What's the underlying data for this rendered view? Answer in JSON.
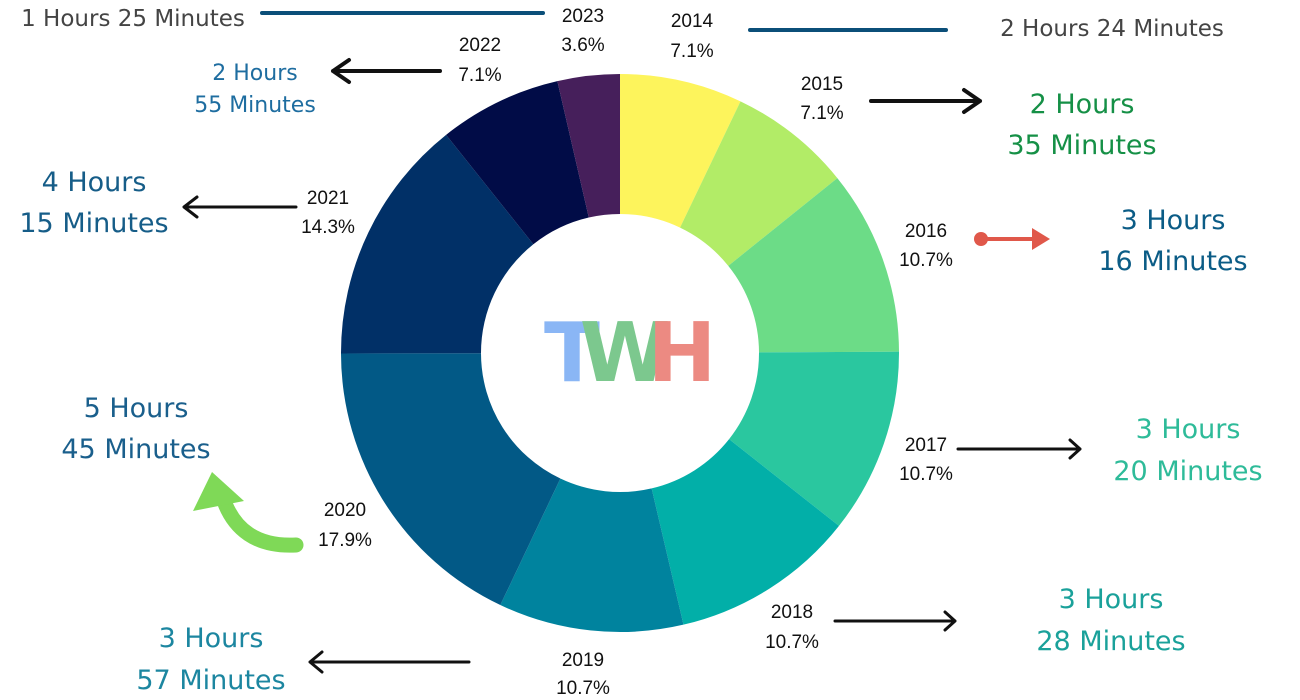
{
  "logo": {
    "letters": [
      {
        "char": "T",
        "color": "#8ab6f5"
      },
      {
        "char": "W",
        "color": "#7cc88e"
      },
      {
        "char": "H",
        "color": "#ec8a82"
      }
    ]
  },
  "chart_data": {
    "type": "pie",
    "donut": true,
    "title": "",
    "legend": "none",
    "slices": [
      {
        "label": "2014",
        "percent": 7.1,
        "pct_label": "7.1%",
        "color": "#fdf45c"
      },
      {
        "label": "2015",
        "percent": 7.1,
        "pct_label": "7.1%",
        "color": "#b2ec67"
      },
      {
        "label": "2016",
        "percent": 10.7,
        "pct_label": "10.7%",
        "color": "#6cdc87"
      },
      {
        "label": "2017",
        "percent": 10.7,
        "pct_label": "10.7%",
        "color": "#2ac79f"
      },
      {
        "label": "2018",
        "percent": 10.7,
        "pct_label": "10.7%",
        "color": "#02afa8"
      },
      {
        "label": "2019",
        "percent": 10.7,
        "pct_label": "10.7%",
        "color": "#00839e"
      },
      {
        "label": "2020",
        "percent": 17.9,
        "pct_label": "17.9%",
        "color": "#025986"
      },
      {
        "label": "2021",
        "percent": 14.3,
        "pct_label": "14.3%",
        "color": "#013067"
      },
      {
        "label": "2022",
        "percent": 7.1,
        "pct_label": "7.1%",
        "color": "#010c47"
      },
      {
        "label": "2023",
        "percent": 3.6,
        "pct_label": "3.6%",
        "color": "#461f5b"
      }
    ],
    "annotations": [
      {
        "year": "2014",
        "lines": [
          "2 Hours 24 Minutes"
        ],
        "color": "#444444"
      },
      {
        "year": "2015",
        "lines": [
          "2 Hours",
          "35 Minutes"
        ],
        "color": "#159046"
      },
      {
        "year": "2016",
        "lines": [
          "3 Hours",
          "16 Minutes"
        ],
        "color": "#0b5c86"
      },
      {
        "year": "2017",
        "lines": [
          "3 Hours",
          "20 Minutes"
        ],
        "color": "#2ebb99"
      },
      {
        "year": "2018",
        "lines": [
          "3 Hours",
          "28 Minutes"
        ],
        "color": "#1aa19a"
      },
      {
        "year": "2019",
        "lines": [
          "3 Hours",
          "57 Minutes"
        ],
        "color": "#1c86a0"
      },
      {
        "year": "2020",
        "lines": [
          "5 Hours",
          "45 Minutes"
        ],
        "color": "#1a5f8c"
      },
      {
        "year": "2021",
        "lines": [
          "4 Hours",
          "15 Minutes"
        ],
        "color": "#165d88"
      },
      {
        "year": "2022",
        "lines": [
          "2 Hours",
          "55 Minutes"
        ],
        "color": "#1e6da0"
      },
      {
        "year": "2023",
        "lines": [
          "1 Hours 25 Minutes"
        ],
        "color": "#444444"
      }
    ]
  }
}
